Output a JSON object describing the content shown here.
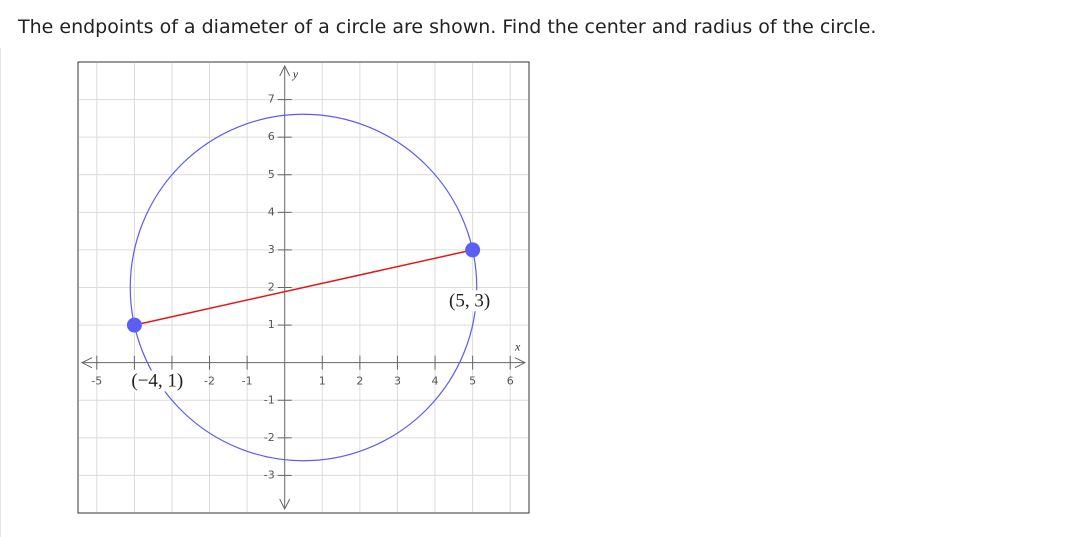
{
  "question": "The endpoints of a diameter of a circle are shown. Find the center and radius of the circle.",
  "chart_data": {
    "type": "circle",
    "x_label": "x",
    "y_label": "y",
    "xlim": [
      -5.5,
      6.5
    ],
    "ylim": [
      -4,
      8
    ],
    "xticks": [
      -5,
      -4,
      -3,
      -2,
      -1,
      1,
      2,
      3,
      4,
      5,
      6
    ],
    "yticks": [
      -3,
      -2,
      -1,
      1,
      2,
      3,
      4,
      5,
      6,
      7
    ],
    "grid": true,
    "points": {
      "x": [
        -4,
        5
      ],
      "y": [
        1,
        3
      ],
      "labels": [
        "(−4, 1)",
        "(5, 3)"
      ],
      "color": "#5b5ef5"
    },
    "circle_color": "#5a5cf0",
    "segment_color": "#e01818"
  }
}
